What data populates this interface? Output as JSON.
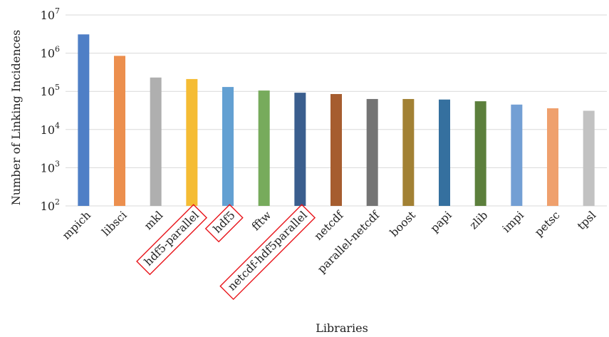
{
  "chart_data": {
    "type": "bar",
    "xlabel": "Libraries",
    "ylabel": "Number of Linking Incidences",
    "yscale": "log",
    "ylim": [
      100,
      10000000
    ],
    "yticks": [
      {
        "value": 100,
        "base": "10",
        "exp": "2"
      },
      {
        "value": 1000,
        "base": "10",
        "exp": "3"
      },
      {
        "value": 10000,
        "base": "10",
        "exp": "4"
      },
      {
        "value": 100000,
        "base": "10",
        "exp": "5"
      },
      {
        "value": 1000000,
        "base": "10",
        "exp": "6"
      },
      {
        "value": 10000000,
        "base": "10",
        "exp": "7"
      }
    ],
    "grid": true,
    "categories": [
      "mpich",
      "libsci",
      "mkl",
      "hdf5-parallel",
      "hdf5",
      "fftw",
      "netcdf-hdf5parallel",
      "netcdf",
      "parallel-netcdf",
      "boost",
      "papi",
      "zlib",
      "impi",
      "petsc",
      "tpsl"
    ],
    "values": [
      3100000,
      850000,
      230000,
      210000,
      130000,
      105000,
      92000,
      85000,
      63000,
      63000,
      61000,
      55000,
      45000,
      36000,
      31000
    ],
    "colors": [
      "#4f7fc6",
      "#ec8f4e",
      "#afafaf",
      "#f5bc34",
      "#63a0d2",
      "#77ab5c",
      "#3a5e8e",
      "#a65d2f",
      "#747474",
      "#a28134",
      "#35709f",
      "#5c7f3c",
      "#739fd4",
      "#efa06d",
      "#c2c2c2"
    ],
    "highlighted": [
      "hdf5-parallel",
      "hdf5",
      "netcdf-hdf5parallel"
    ],
    "highlight_color": "#e8141a"
  }
}
